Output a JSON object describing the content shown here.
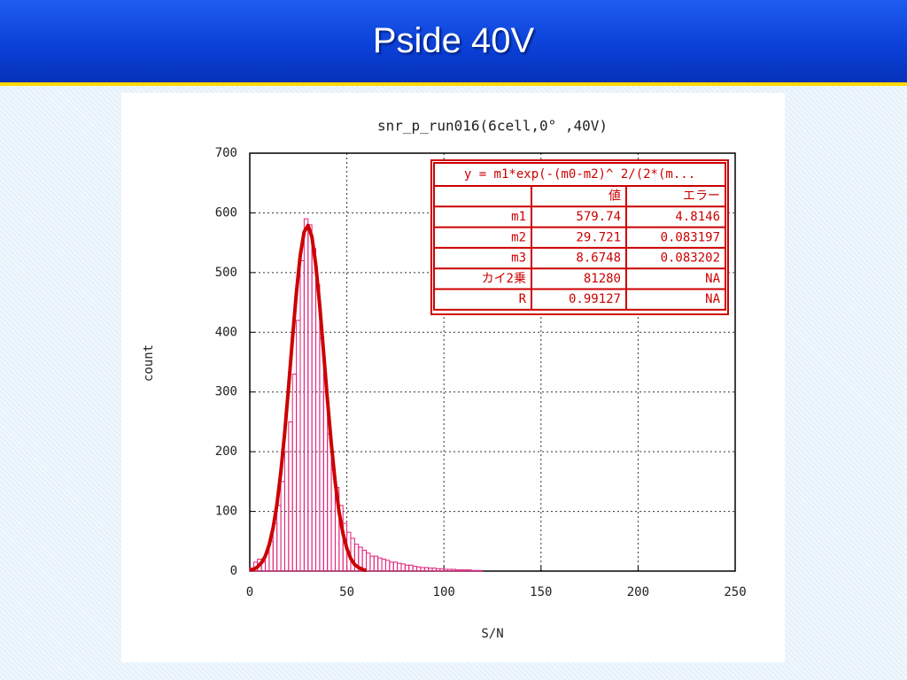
{
  "slide_title": "Pside 40V",
  "chart_data": {
    "type": "histogram",
    "title": "snr_p_run016(6cell,0° ,40V)",
    "x_label": "S/N",
    "y_label": "count",
    "bins": [
      0,
      2,
      4,
      6,
      8,
      10,
      12,
      14,
      16,
      18,
      20,
      22,
      24,
      26,
      28,
      30,
      32,
      34,
      36,
      38,
      40,
      42,
      44,
      46,
      48,
      50,
      52,
      54,
      56,
      58,
      60,
      62,
      64,
      66,
      68,
      70,
      72,
      74,
      76,
      78,
      80,
      82,
      84,
      86,
      88,
      90,
      92,
      94,
      96,
      98,
      100,
      102,
      104,
      106,
      108,
      110,
      112,
      114,
      116,
      118,
      120
    ],
    "counts": [
      5,
      15,
      20,
      15,
      30,
      50,
      80,
      110,
      150,
      200,
      250,
      330,
      420,
      520,
      590,
      580,
      540,
      480,
      390,
      300,
      230,
      170,
      140,
      110,
      80,
      65,
      55,
      45,
      40,
      35,
      30,
      25,
      25,
      22,
      20,
      18,
      15,
      15,
      13,
      12,
      10,
      10,
      8,
      7,
      6,
      6,
      5,
      5,
      4,
      4,
      3,
      3,
      3,
      2,
      2,
      2,
      2,
      1,
      1,
      1
    ],
    "color": "#e0207a",
    "fit": {
      "color": "#cc0000",
      "x": [
        0,
        2,
        4,
        6,
        8,
        10,
        12,
        14,
        16,
        18,
        20,
        22,
        24,
        26,
        28,
        30,
        32,
        34,
        36,
        38,
        40,
        42,
        44,
        46,
        48,
        50,
        52,
        54,
        56,
        58,
        60
      ],
      "values": [
        2,
        3,
        7,
        14,
        25,
        44,
        72,
        112,
        166,
        232,
        309,
        390,
        466,
        529,
        568,
        579,
        560,
        513,
        446,
        367,
        287,
        213,
        149,
        99,
        63,
        38,
        21,
        11,
        6,
        3,
        1
      ]
    },
    "xlim": [
      0,
      250
    ],
    "xticks": [
      0,
      50,
      100,
      150,
      200,
      250
    ],
    "ylim": [
      0,
      700
    ],
    "yticks": [
      0,
      100,
      200,
      300,
      400,
      500,
      600,
      700
    ],
    "grid": true,
    "fit_table": {
      "header": "y = m1*exp(-(m0-m2)^ 2/(2*(m...",
      "columns": [
        "値",
        "エラー"
      ],
      "rows": [
        [
          "m1",
          "579.74",
          "4.8146"
        ],
        [
          "m2",
          "29.721",
          "0.083197"
        ],
        [
          "m3",
          "8.6748",
          "0.083202"
        ],
        [
          "カイ2乗",
          "81280",
          "NA"
        ],
        [
          "R",
          "0.99127",
          "NA"
        ]
      ]
    }
  }
}
